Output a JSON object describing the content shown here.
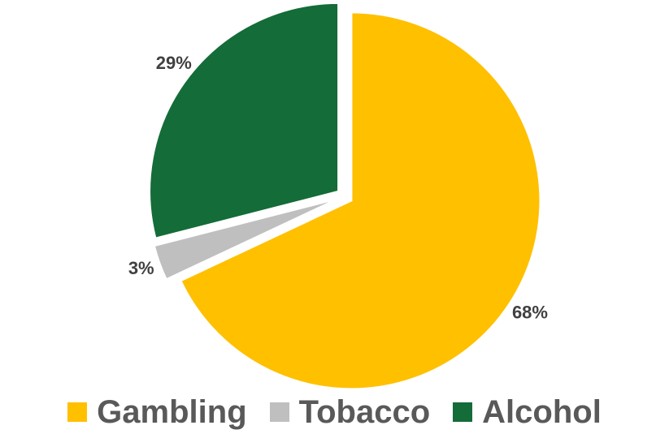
{
  "chart_data": {
    "type": "pie",
    "title": "",
    "categories": [
      "Gambling",
      "Tobacco",
      "Alcohol"
    ],
    "values": [
      68,
      3,
      29
    ],
    "labels": [
      "68%",
      "3%",
      "29%"
    ],
    "colors": [
      "#FFC000",
      "#BFBFBF",
      "#146C38"
    ],
    "exploded": true,
    "legend_position": "bottom",
    "start_angle_deg": 0,
    "direction": "clockwise"
  }
}
